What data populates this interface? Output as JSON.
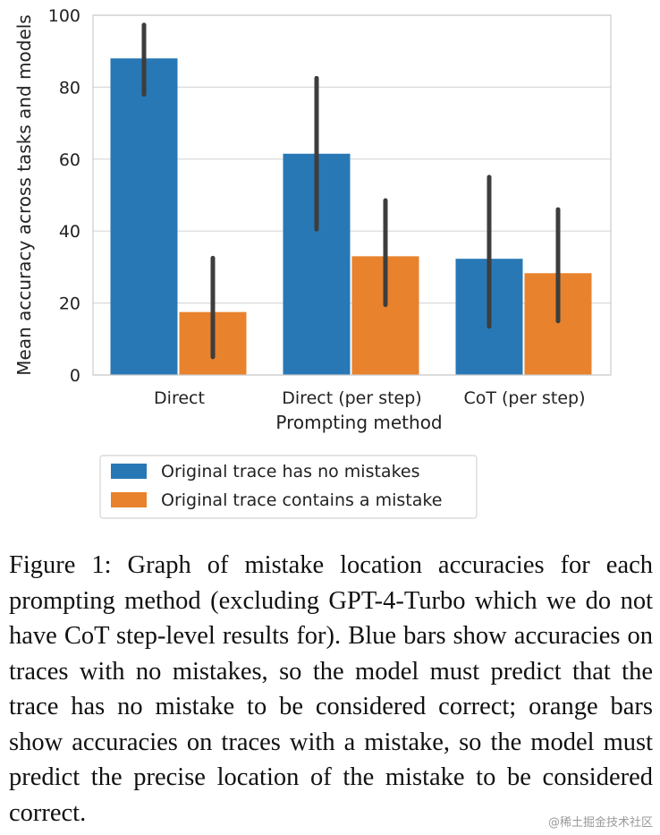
{
  "chart_data": {
    "type": "bar",
    "categories": [
      "Direct",
      "Direct (per step)",
      "CoT (per step)"
    ],
    "series": [
      {
        "name": "Original trace has no mistakes",
        "color": "#2878b5",
        "values": [
          88,
          61.5,
          32.3
        ],
        "error_low": [
          78,
          40.5,
          13.5
        ],
        "error_high": [
          97.3,
          82.5,
          55
        ]
      },
      {
        "name": "Original trace contains a mistake",
        "color": "#e8822d",
        "values": [
          17.5,
          33,
          28.3
        ],
        "error_low": [
          5,
          19.5,
          15
        ],
        "error_high": [
          32.5,
          48.5,
          46
        ]
      }
    ],
    "ylim": [
      0,
      100
    ],
    "yticks": [
      0,
      20,
      40,
      60,
      80,
      100
    ],
    "xlabel": "Prompting method",
    "ylabel": "Mean accuracy across tasks and models",
    "grid": true,
    "legend_position": "bottom"
  },
  "caption": "Figure 1: Graph of mistake location accuracies for each prompting method (excluding GPT-4-Turbo which we do not have CoT step-level results for). Blue bars show accuracies on traces with no mistakes, so the model must predict that the trace has no mistake to be considered correct; orange bars show accuracies on traces with a mistake, so the model must predict the precise location of the mistake to be considered correct.",
  "watermark": "@稀土掘金技术社区"
}
